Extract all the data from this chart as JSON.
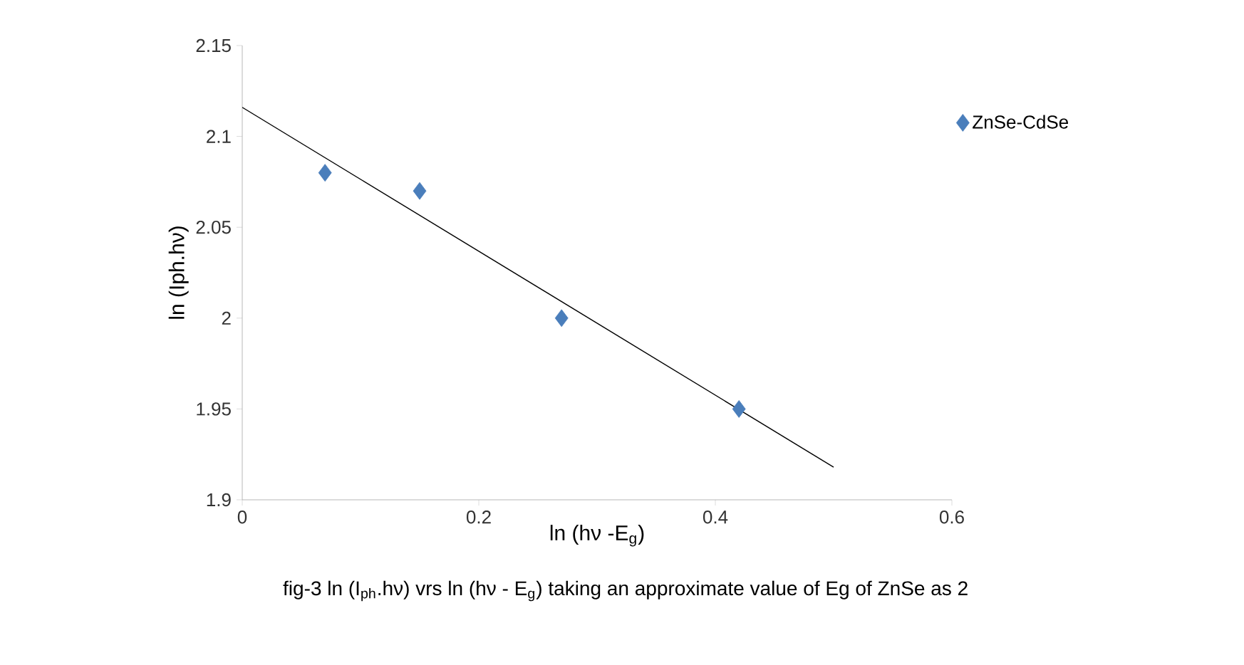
{
  "chart_data": {
    "type": "scatter",
    "xlabel": "ln (hν -E$_{g}$)",
    "ylabel": "ln (Iph.hν)",
    "annotations": [
      "fig-3 ln (I$_{ph}$.hν) vrs ln (hν - E$_{g}$) taking an approximate value of Eg of ZnSe as 2"
    ],
    "series": [
      {
        "name": "ZnSe-CdSe",
        "color": "#4a7ebb",
        "marker": "diamond",
        "x": [
          0.07,
          0.15,
          0.27,
          0.42
        ],
        "values": [
          2.08,
          2.07,
          2.0,
          1.95
        ]
      },
      {
        "type": "line",
        "marker": "none",
        "color": "#000000",
        "x": [
          0,
          0.5
        ],
        "values": [
          2.116,
          1.918
        ]
      }
    ],
    "xlim": [
      0,
      0.6
    ],
    "xticks": [
      0,
      0.2,
      0.4,
      0.6
    ],
    "ylim": [
      1.9,
      2.15
    ],
    "yticks": [
      1.9,
      1.95,
      2,
      2.05,
      2.1,
      2.15
    ],
    "legend": "right",
    "grid": false
  }
}
